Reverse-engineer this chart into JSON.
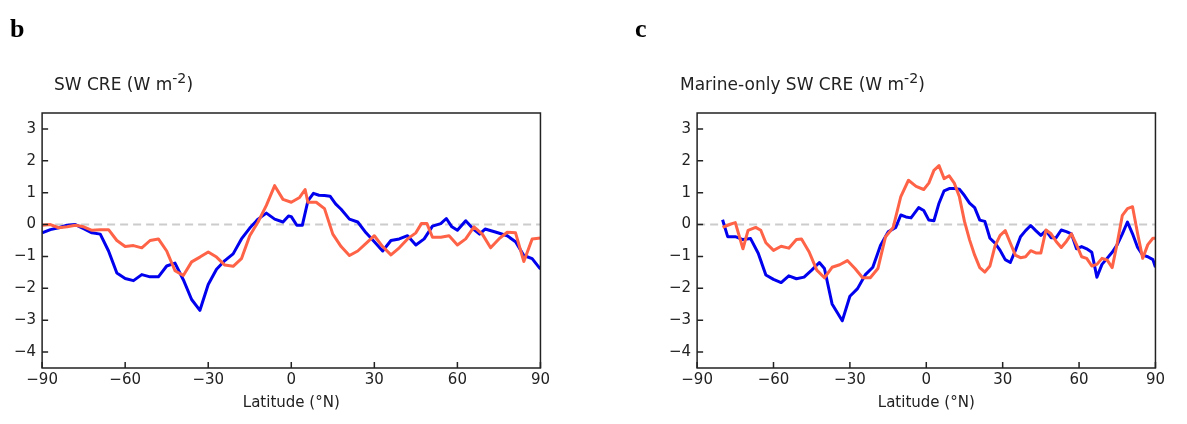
{
  "chart_data": [
    {
      "type": "line",
      "title": "SW CRE (W m$^{-2}$)",
      "xlabel": "Latitude (°N)",
      "annotations": [
        "b"
      ],
      "xlim": [
        -90,
        90
      ],
      "xticks": [
        -90,
        -60,
        -30,
        0,
        30,
        60,
        90
      ],
      "ylim": [
        -4.5,
        3.5
      ],
      "yticks": [
        -4,
        -3,
        -2,
        -1,
        0,
        1,
        2,
        3
      ],
      "grid": false,
      "legend": false,
      "marker": "none",
      "line_style": "solid",
      "ref_lines": [
        {
          "axis": "y",
          "value": 0,
          "color": "#cccccc",
          "line_style": "dashed"
        }
      ],
      "series": [
        {
          "color": "#ff6347",
          "x": [
            -90,
            -87,
            -84,
            -81,
            -78,
            -75,
            -72,
            -69,
            -66,
            -63,
            -60,
            -57,
            -54,
            -51,
            -48,
            -45,
            -42,
            -39,
            -36,
            -33,
            -30,
            -27,
            -24,
            -21,
            -18,
            -15,
            -12,
            -9,
            -6,
            -3,
            0,
            3,
            5,
            6,
            9,
            12,
            15,
            18,
            21,
            24,
            27,
            30,
            33,
            36,
            39,
            42,
            45,
            47,
            49,
            51,
            54,
            57,
            60,
            63,
            66,
            69,
            72,
            75,
            78,
            81,
            84,
            87,
            90
          ],
          "values": [
            -0.02,
            0,
            -0.1,
            -0.07,
            -0.02,
            -0.07,
            -0.18,
            -0.16,
            -0.16,
            -0.5,
            -0.69,
            -0.66,
            -0.73,
            -0.5,
            -0.45,
            -0.83,
            -1.45,
            -1.6,
            -1.17,
            -1.02,
            -0.86,
            -1.02,
            -1.27,
            -1.31,
            -1.07,
            -0.35,
            0.08,
            0.6,
            1.22,
            0.79,
            0.7,
            0.85,
            1.1,
            0.7,
            0.7,
            0.5,
            -0.3,
            -0.69,
            -0.97,
            -0.83,
            -0.59,
            -0.35,
            -0.69,
            -0.95,
            -0.73,
            -0.45,
            -0.26,
            0.03,
            0.03,
            -0.4,
            -0.4,
            -0.35,
            -0.64,
            -0.45,
            -0.07,
            -0.3,
            -0.73,
            -0.45,
            -0.24,
            -0.26,
            -1.16,
            -0.45,
            -0.42
          ]
        },
        {
          "color": "#0000ee",
          "x": [
            -90,
            -87,
            -84,
            -81,
            -78,
            -75,
            -72,
            -69,
            -66,
            -63,
            -60,
            -57,
            -54,
            -51,
            -48,
            -45,
            -42,
            -39,
            -36,
            -33,
            -30,
            -27,
            -24,
            -21,
            -18,
            -15,
            -12,
            -9,
            -6,
            -3,
            -1,
            0,
            2,
            4,
            6,
            8,
            10,
            12,
            14,
            16,
            18,
            21,
            24,
            27,
            30,
            33,
            36,
            39,
            42,
            45,
            48,
            51,
            54,
            56,
            58,
            60,
            63,
            66,
            68,
            70,
            74,
            78,
            81,
            84,
            87,
            90
          ],
          "values": [
            -0.26,
            -0.16,
            -0.1,
            -0.02,
            0,
            -0.13,
            -0.26,
            -0.3,
            -0.83,
            -1.52,
            -1.69,
            -1.76,
            -1.57,
            -1.64,
            -1.64,
            -1.3,
            -1.21,
            -1.73,
            -2.35,
            -2.69,
            -1.88,
            -1.4,
            -1.13,
            -0.92,
            -0.45,
            -0.11,
            0.17,
            0.36,
            0.17,
            0.08,
            0.27,
            0.25,
            -0.02,
            -0.02,
            0.74,
            0.98,
            0.92,
            0.91,
            0.89,
            0.65,
            0.48,
            0.17,
            0.08,
            -0.26,
            -0.54,
            -0.83,
            -0.5,
            -0.45,
            -0.35,
            -0.64,
            -0.45,
            -0.05,
            0.03,
            0.19,
            -0.07,
            -0.18,
            0.12,
            -0.16,
            -0.3,
            -0.14,
            -0.24,
            -0.35,
            -0.54,
            -0.97,
            -1.07,
            -1.4
          ]
        }
      ]
    },
    {
      "type": "line",
      "title": "Marine-only SW CRE (W m$^{-2}$)",
      "xlabel": "Latitude (°N)",
      "annotations": [
        "c"
      ],
      "xlim": [
        -90,
        90
      ],
      "xticks": [
        -90,
        -60,
        -30,
        0,
        30,
        60,
        90
      ],
      "ylim": [
        -4.5,
        3.5
      ],
      "yticks": [
        -4,
        -3,
        -2,
        -1,
        0,
        1,
        2,
        3
      ],
      "grid": false,
      "legend": false,
      "marker": "none",
      "line_style": "solid",
      "ref_lines": [
        {
          "axis": "y",
          "value": 0,
          "color": "#cccccc",
          "line_style": "dashed"
        }
      ],
      "series": [
        {
          "color": "#ff6347",
          "x": [
            -80,
            -77,
            -75,
            -72,
            -70,
            -67,
            -65,
            -63,
            -60,
            -57,
            -54,
            -51,
            -49,
            -46,
            -43,
            -40,
            -37,
            -34,
            -31,
            -28,
            -25,
            -22,
            -19,
            -16,
            -13,
            -10,
            -7,
            -4,
            -1,
            1,
            3,
            5,
            7,
            9,
            11,
            13,
            15,
            17,
            19,
            21,
            23,
            25,
            27,
            29,
            31,
            33,
            35,
            37,
            39,
            41,
            43,
            45,
            47,
            49,
            51,
            53,
            55,
            57,
            59,
            61,
            63,
            65,
            67,
            69,
            71,
            73,
            75,
            77,
            79,
            81,
            83,
            85,
            87,
            89,
            90
          ],
          "values": [
            -0.09,
            0.01,
            0.06,
            -0.76,
            -0.18,
            -0.09,
            -0.18,
            -0.57,
            -0.81,
            -0.68,
            -0.74,
            -0.47,
            -0.45,
            -0.86,
            -1.43,
            -1.67,
            -1.34,
            -1.26,
            -1.13,
            -1.38,
            -1.67,
            -1.67,
            -1.38,
            -0.38,
            -0.09,
            0.88,
            1.39,
            1.2,
            1.1,
            1.3,
            1.7,
            1.85,
            1.44,
            1.53,
            1.3,
            0.87,
            0.1,
            -0.48,
            -0.96,
            -1.35,
            -1.49,
            -1.3,
            -0.67,
            -0.34,
            -0.19,
            -0.58,
            -0.96,
            -1.04,
            -1.01,
            -0.82,
            -0.89,
            -0.89,
            -0.17,
            -0.29,
            -0.53,
            -0.72,
            -0.53,
            -0.29,
            -0.63,
            -1.01,
            -1.06,
            -1.3,
            -1.25,
            -1.06,
            -1.11,
            -1.35,
            -0.58,
            0.29,
            0.5,
            0.56,
            -0.29,
            -1.06,
            -0.63,
            -0.43,
            -0.43
          ]
        },
        {
          "color": "#0000ee",
          "x": [
            -80,
            -78,
            -75,
            -72,
            -69,
            -66,
            -63,
            -60,
            -57,
            -54,
            -51,
            -48,
            -45,
            -42,
            -40,
            -37,
            -33,
            -30,
            -27,
            -24,
            -21,
            -18,
            -15,
            -12,
            -10,
            -8,
            -6,
            -3,
            -1,
            1,
            3,
            5,
            7,
            9,
            11,
            13,
            15,
            17,
            19,
            21,
            23,
            25,
            27,
            29,
            31,
            33,
            35,
            37,
            39,
            41,
            43,
            45,
            47,
            49,
            51,
            53,
            55,
            57,
            59,
            61,
            63,
            65,
            67,
            69,
            71,
            73,
            75,
            77,
            79,
            81,
            83,
            85,
            87,
            89,
            90
          ],
          "values": [
            0.15,
            -0.38,
            -0.38,
            -0.47,
            -0.44,
            -0.9,
            -1.58,
            -1.72,
            -1.82,
            -1.61,
            -1.7,
            -1.65,
            -1.43,
            -1.19,
            -1.38,
            -2.49,
            -3.02,
            -2.25,
            -2.01,
            -1.58,
            -1.34,
            -0.66,
            -0.23,
            -0.09,
            0.3,
            0.24,
            0.21,
            0.53,
            0.44,
            0.14,
            0.12,
            0.67,
            1.06,
            1.13,
            1.13,
            1.11,
            0.91,
            0.67,
            0.53,
            0.14,
            0.1,
            -0.43,
            -0.58,
            -0.81,
            -1.1,
            -1.19,
            -0.81,
            -0.38,
            -0.19,
            -0.03,
            -0.19,
            -0.34,
            -0.19,
            -0.41,
            -0.41,
            -0.17,
            -0.22,
            -0.29,
            -0.76,
            -0.69,
            -0.76,
            -0.87,
            -1.65,
            -1.25,
            -1.06,
            -0.87,
            -0.63,
            -0.29,
            0.08,
            -0.29,
            -0.72,
            -0.96,
            -1.01,
            -1.1,
            -1.34
          ]
        }
      ]
    }
  ]
}
